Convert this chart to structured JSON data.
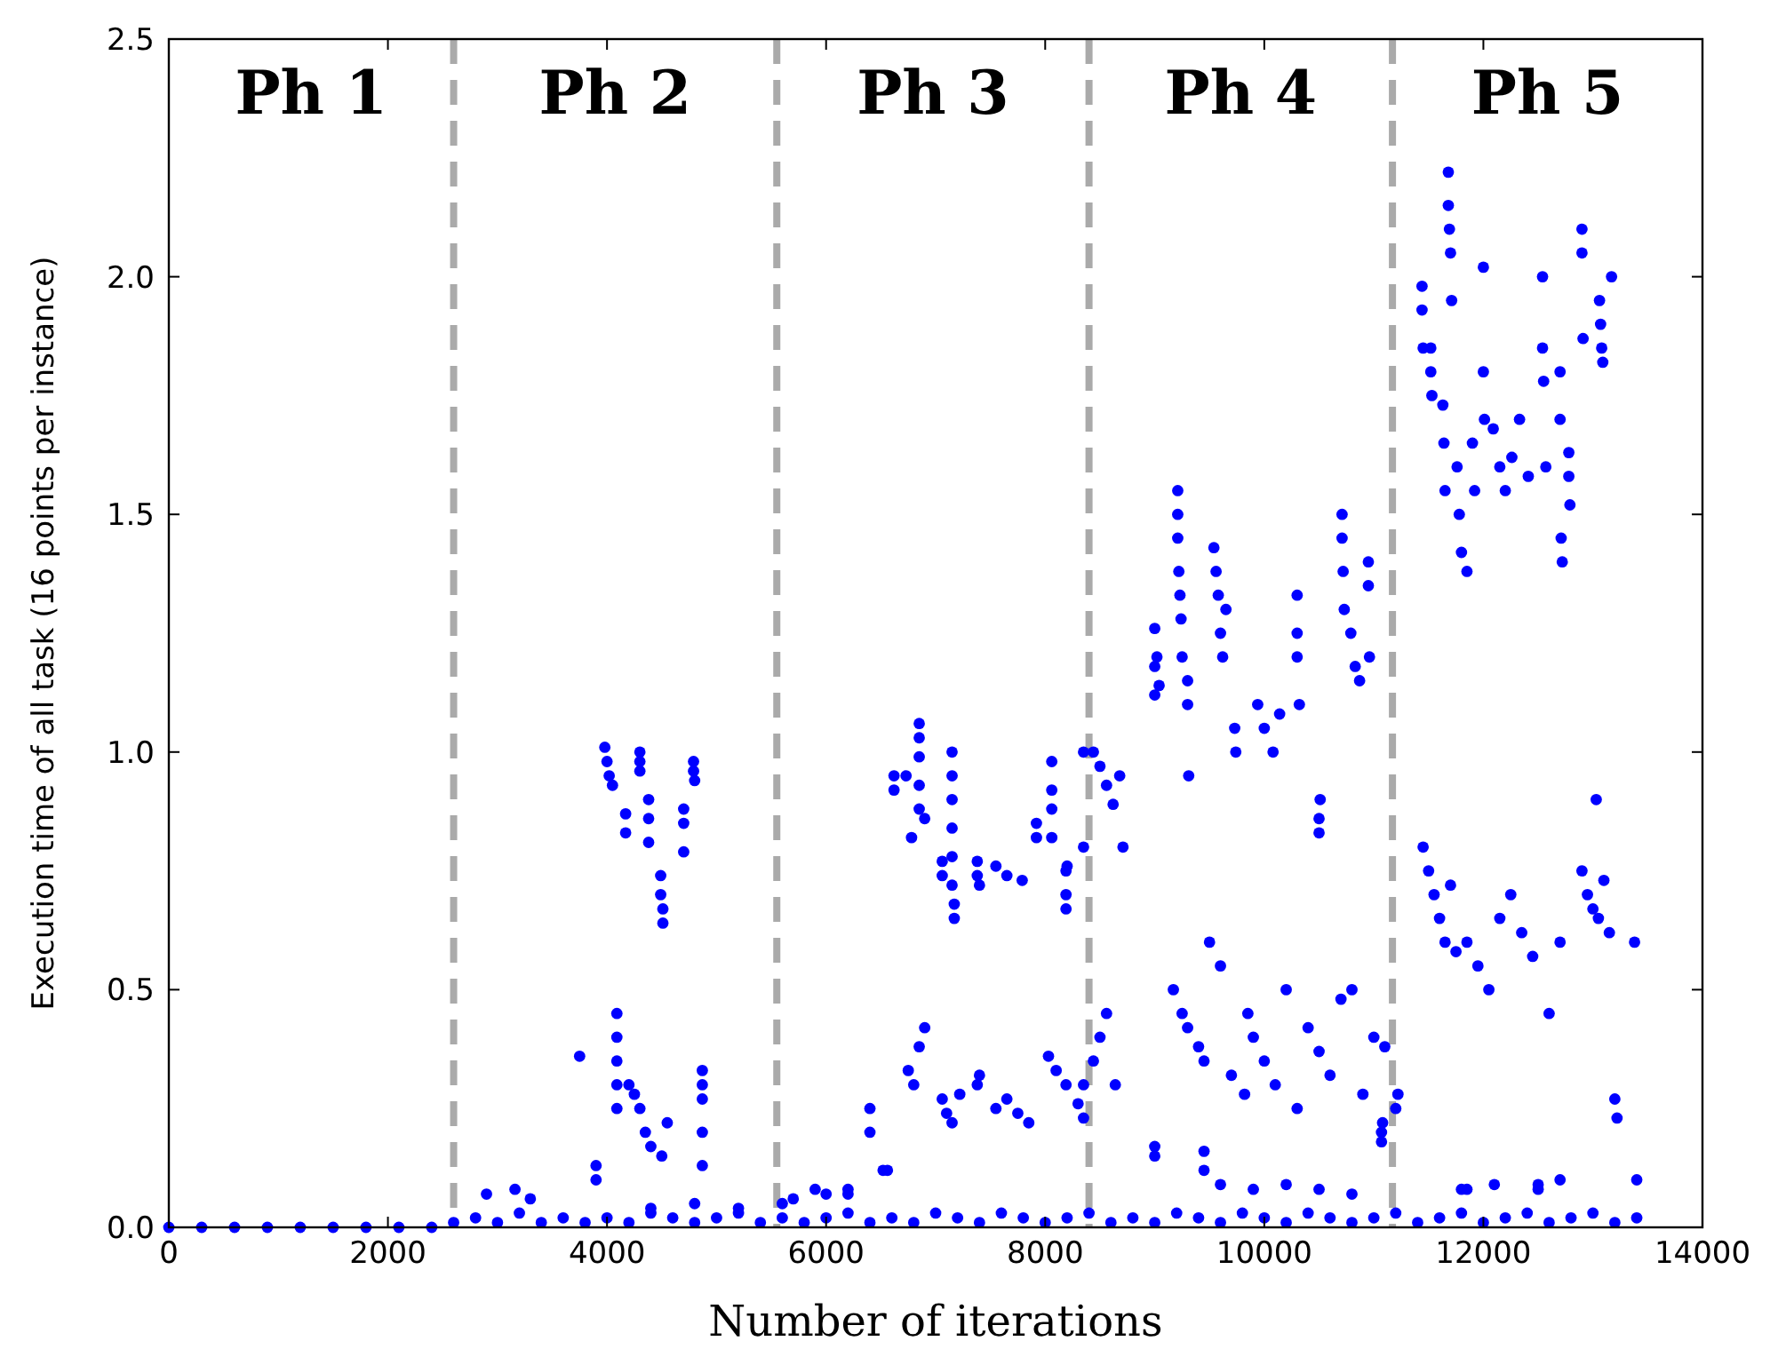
{
  "chart_data": {
    "type": "scatter",
    "xlabel": "Number of iterations",
    "ylabel": "Execution time of all task (16 points per instance)",
    "xlim": [
      0,
      14000
    ],
    "ylim": [
      0,
      2.5
    ],
    "xticks": [
      0,
      2000,
      4000,
      6000,
      8000,
      10000,
      12000,
      14000
    ],
    "yticks": [
      {
        "value": 0,
        "label": "0.0"
      },
      {
        "value": 0.5,
        "label": "0.5"
      },
      {
        "value": 1,
        "label": "1.0"
      },
      {
        "value": 1.5,
        "label": "1.5"
      },
      {
        "value": 2,
        "label": "2.0"
      },
      {
        "value": 2.5,
        "label": "2.5"
      }
    ],
    "grid": false,
    "marker": "circle",
    "ref_lines": [
      {
        "axis": "x",
        "value": 2600,
        "color": "#aaaaaa",
        "line_style": "dashed"
      },
      {
        "axis": "x",
        "value": 5550,
        "color": "#aaaaaa",
        "line_style": "dashed"
      },
      {
        "axis": "x",
        "value": 8400,
        "color": "#aaaaaa",
        "line_style": "dashed"
      },
      {
        "axis": "x",
        "value": 11170,
        "color": "#aaaaaa",
        "line_style": "dashed"
      }
    ],
    "annotations": [
      "Ph 1",
      "Ph 2",
      "Ph 3",
      "Ph 4",
      "Ph 5"
    ],
    "series": [
      {
        "color": "#0000ff",
        "x": [
          0,
          300,
          600,
          900,
          1200,
          1500,
          1800,
          2100,
          2400,
          2600,
          2800,
          3000,
          3200,
          3400,
          3600,
          3800,
          4000,
          4200,
          4400,
          4600,
          4800,
          5000,
          5200,
          5400,
          5600,
          5800,
          6000,
          6200,
          6400,
          6600,
          6800,
          7000,
          7200,
          7400,
          7600,
          7800,
          8000,
          8200,
          8400,
          8600,
          8800,
          9000,
          9200,
          9400,
          9600,
          9800,
          10000,
          10200,
          10400,
          10600,
          10800,
          11000,
          11200,
          11400,
          11600,
          11800,
          12000,
          12200,
          12400,
          12600,
          12800,
          13000,
          13200,
          13400,
          2900,
          3160,
          3300,
          4400,
          4800,
          5200,
          5700,
          6000,
          6200,
          9600,
          9900,
          10200,
          10500,
          10800,
          11800,
          12100,
          12500,
          13400,
          3980,
          4000,
          4020,
          4050,
          4170,
          4170,
          4300,
          4300,
          4300,
          4380,
          4380,
          4380,
          4490,
          4490,
          4510,
          4510,
          4700,
          4700,
          4700,
          4790,
          4790,
          4800,
          3750,
          3900,
          3900,
          4090,
          4090,
          4090,
          4090,
          4090,
          4200,
          4250,
          4300,
          4350,
          4400,
          4500,
          4550,
          4870,
          4870,
          4870,
          4870,
          4870,
          6620,
          6620,
          6730,
          6850,
          6850,
          6850,
          6850,
          6850,
          6780,
          6900,
          7060,
          7060,
          7150,
          7150,
          7150,
          7150,
          7150,
          7150,
          7170,
          7170,
          7380,
          7380,
          7400,
          7550,
          7650,
          7790,
          7920,
          7920,
          8060,
          8060,
          8060,
          8060,
          8190,
          8190,
          8190,
          8200,
          8350,
          8350,
          6400,
          6400,
          6520,
          6560,
          6750,
          6800,
          6850,
          6900,
          7060,
          7100,
          7150,
          7220,
          7380,
          7400,
          7550,
          7650,
          7750,
          7850,
          8030,
          8100,
          8190,
          8300,
          8350,
          8350,
          5600,
          5900,
          6200,
          8440,
          8500,
          8560,
          8620,
          8680,
          8710,
          9000,
          9000,
          9000,
          9020,
          9040,
          9210,
          9210,
          9210,
          9220,
          9230,
          9240,
          9250,
          9300,
          9300,
          9310,
          9540,
          9560,
          9580,
          9600,
          9620,
          9650,
          9730,
          9740,
          9940,
          10000,
          10080,
          10140,
          10300,
          10300,
          10300,
          10320,
          10500,
          10500,
          10510,
          10710,
          10710,
          10720,
          10730,
          10790,
          10830,
          10870,
          10950,
          10950,
          10960,
          8440,
          8500,
          8560,
          8640,
          9170,
          9250,
          9300,
          9400,
          9450,
          9500,
          9600,
          9700,
          9820,
          9850,
          9900,
          10000,
          10100,
          10200,
          10300,
          10400,
          10500,
          10600,
          10700,
          10800,
          10900,
          11000,
          11100,
          9000,
          9000,
          9450,
          9450,
          11070,
          11070,
          11080,
          11440,
          11440,
          11450,
          11680,
          11680,
          11690,
          11700,
          11710,
          11520,
          11520,
          11530,
          11630,
          11640,
          11650,
          11760,
          11780,
          11800,
          11850,
          11900,
          11920,
          12000,
          12000,
          12010,
          12090,
          12150,
          12200,
          12260,
          12330,
          12410,
          12540,
          12540,
          12550,
          12570,
          12700,
          12700,
          12710,
          12720,
          12780,
          12780,
          12790,
          12900,
          12900,
          12910,
          13060,
          13070,
          13080,
          13090,
          13170,
          11450,
          11500,
          11550,
          11600,
          11650,
          11700,
          11750,
          11850,
          11950,
          12050,
          12150,
          12250,
          12350,
          12450,
          12600,
          12700,
          12900,
          12950,
          13000,
          13050,
          13100,
          13150,
          13030,
          13380,
          11200,
          11220,
          13200,
          13220,
          12700,
          12500,
          11850
        ],
        "values": [
          0,
          0,
          0,
          0,
          0,
          0,
          0,
          0,
          0,
          0.01,
          0.02,
          0.01,
          0.03,
          0.01,
          0.02,
          0.01,
          0.02,
          0.01,
          0.03,
          0.02,
          0.01,
          0.02,
          0.03,
          0.01,
          0.02,
          0.01,
          0.02,
          0.03,
          0.01,
          0.02,
          0.01,
          0.03,
          0.02,
          0.01,
          0.03,
          0.02,
          0.01,
          0.02,
          0.03,
          0.01,
          0.02,
          0.01,
          0.03,
          0.02,
          0.01,
          0.03,
          0.02,
          0.01,
          0.03,
          0.02,
          0.01,
          0.02,
          0.03,
          0.01,
          0.02,
          0.03,
          0.01,
          0.02,
          0.03,
          0.01,
          0.02,
          0.03,
          0.01,
          0.02,
          0.07,
          0.08,
          0.06,
          0.04,
          0.05,
          0.04,
          0.06,
          0.07,
          0.08,
          0.09,
          0.08,
          0.09,
          0.08,
          0.07,
          0.08,
          0.09,
          0.08,
          0.1,
          1.01,
          0.98,
          0.95,
          0.93,
          0.87,
          0.83,
          1.0,
          0.98,
          0.96,
          0.9,
          0.86,
          0.81,
          0.74,
          0.7,
          0.67,
          0.64,
          0.88,
          0.85,
          0.79,
          0.98,
          0.96,
          0.94,
          0.36,
          0.13,
          0.1,
          0.45,
          0.4,
          0.35,
          0.3,
          0.25,
          0.3,
          0.28,
          0.25,
          0.2,
          0.17,
          0.15,
          0.22,
          0.33,
          0.3,
          0.27,
          0.2,
          0.13,
          0.95,
          0.92,
          0.95,
          1.06,
          1.03,
          0.99,
          0.93,
          0.88,
          0.82,
          0.86,
          0.77,
          0.74,
          1.0,
          0.95,
          0.9,
          0.84,
          0.78,
          0.72,
          0.68,
          0.65,
          0.77,
          0.74,
          0.72,
          0.76,
          0.74,
          0.73,
          0.85,
          0.82,
          0.98,
          0.92,
          0.88,
          0.82,
          0.75,
          0.7,
          0.67,
          0.76,
          0.8,
          1.0,
          0.25,
          0.2,
          0.12,
          0.12,
          0.33,
          0.3,
          0.38,
          0.42,
          0.27,
          0.24,
          0.22,
          0.28,
          0.3,
          0.32,
          0.25,
          0.27,
          0.24,
          0.22,
          0.36,
          0.33,
          0.3,
          0.26,
          0.23,
          0.3,
          0.05,
          0.08,
          0.07,
          1.0,
          0.97,
          0.93,
          0.89,
          0.95,
          0.8,
          1.12,
          1.18,
          1.26,
          1.2,
          1.14,
          1.55,
          1.5,
          1.45,
          1.38,
          1.33,
          1.28,
          1.2,
          1.15,
          1.1,
          0.95,
          1.43,
          1.38,
          1.33,
          1.25,
          1.2,
          1.3,
          1.05,
          1.0,
          1.1,
          1.05,
          1.0,
          1.08,
          1.33,
          1.25,
          1.2,
          1.1,
          0.86,
          0.83,
          0.9,
          1.5,
          1.45,
          1.38,
          1.3,
          1.25,
          1.18,
          1.15,
          1.4,
          1.35,
          1.2,
          0.35,
          0.4,
          0.45,
          0.3,
          0.5,
          0.45,
          0.42,
          0.38,
          0.35,
          0.6,
          0.55,
          0.32,
          0.28,
          0.45,
          0.4,
          0.35,
          0.3,
          0.5,
          0.25,
          0.42,
          0.37,
          0.32,
          0.48,
          0.5,
          0.28,
          0.4,
          0.38,
          0.15,
          0.17,
          0.16,
          0.12,
          0.2,
          0.18,
          0.22,
          1.98,
          1.93,
          1.85,
          2.22,
          2.15,
          2.1,
          2.05,
          1.95,
          1.85,
          1.8,
          1.75,
          1.73,
          1.65,
          1.55,
          1.6,
          1.5,
          1.42,
          1.38,
          1.65,
          1.55,
          2.02,
          1.8,
          1.7,
          1.68,
          1.6,
          1.55,
          1.62,
          1.7,
          1.58,
          2.0,
          1.85,
          1.78,
          1.6,
          1.8,
          1.7,
          1.45,
          1.4,
          1.63,
          1.58,
          1.52,
          2.1,
          2.05,
          1.87,
          1.95,
          1.9,
          1.85,
          1.82,
          2.0,
          0.8,
          0.75,
          0.7,
          0.65,
          0.6,
          0.72,
          0.58,
          0.6,
          0.55,
          0.5,
          0.65,
          0.7,
          0.62,
          0.57,
          0.45,
          0.6,
          0.75,
          0.7,
          0.67,
          0.65,
          0.73,
          0.62,
          0.9,
          0.6,
          0.25,
          0.28,
          0.27,
          0.23,
          0.1,
          0.09,
          0.08
        ]
      }
    ]
  }
}
